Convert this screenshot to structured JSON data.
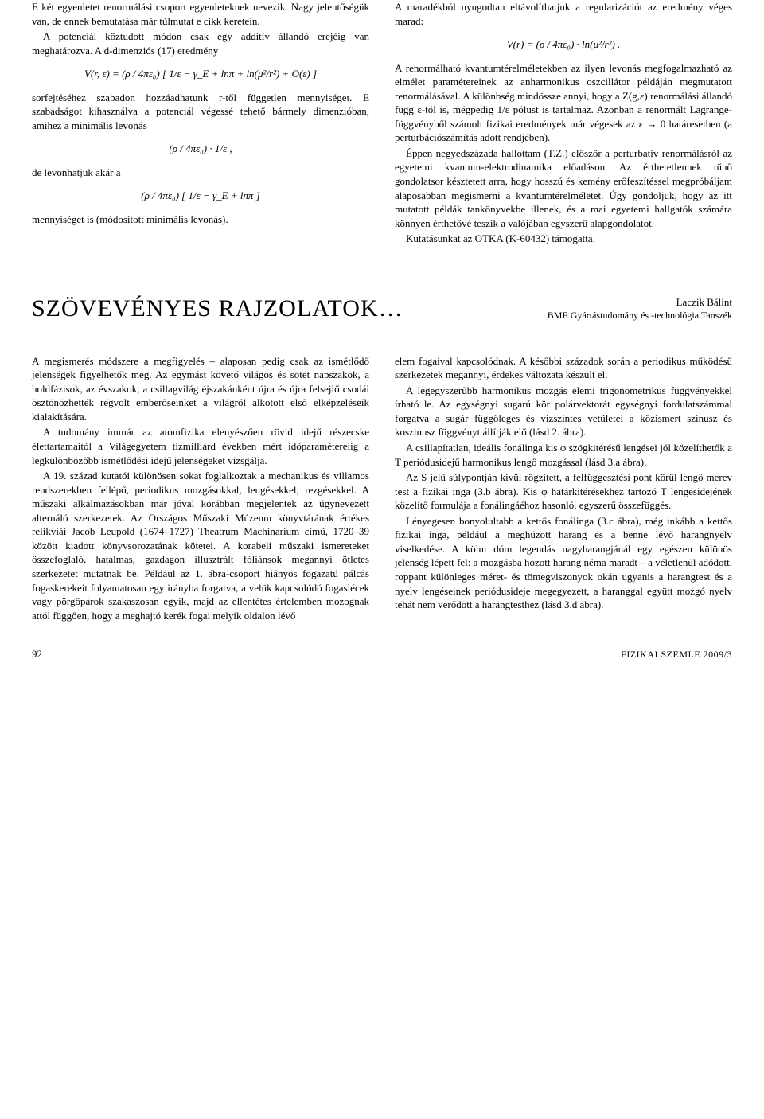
{
  "upper": {
    "left": {
      "p1": "E két egyenletet renormálási csoport egyenleteknek nevezik. Nagy jelentőségük van, de ennek bemutatása már túlmutat e cikk keretein.",
      "p2": "A potenciál köztudott módon csak egy additív állandó erejéig van meghatározva. A d-dimenziós (17) eredmény",
      "formula1": "V(r, ε) = (ρ / 4πε₀) [ 1/ε − γ_E + lnπ + ln(μ²/r²) + O(ε) ]",
      "p3": "sorfejtéséhez szabadon hozzáadhatunk r-től független mennyiséget. E szabadságot kihasználva a potenciál végessé tehető bármely dimenzióban, amihez a minimális levonás",
      "formula2": "(ρ / 4πε₀) · 1/ε ,",
      "p4": "de levonhatjuk akár a",
      "formula3": "(ρ / 4πε₀) [ 1/ε − γ_E + lnπ ]",
      "p5": "mennyiséget is (módosított minimális levonás)."
    },
    "right": {
      "p1": "A maradékból nyugodtan eltávolíthatjuk a regularizációt az eredmény véges marad:",
      "formula1": "V(r) = (ρ / 4πε₀) · ln(μ²/r²) .",
      "p2": "A renormálható kvantumtérelméletekben az ilyen levonás megfogalmazható az elmélet paramétereinek az anharmonikus oszcillátor példáján megmutatott renormálásával. A különbség mindössze annyi, hogy a Z(g,ε) renormálási állandó függ ε-tól is, mégpedig 1/ε pólust is tartalmaz. Azonban a renormált Lagrange-függvényből számolt fizikai eredmények már végesek az ε → 0 határesetben (a perturbációszámítás adott rendjében).",
      "p3": "Éppen negyedszázada hallottam (T.Z.) először a perturbatív renormálásról az egyetemi kvantum-elektrodinamika előadáson. Az érthetetlennek tűnő gondolatsor késztetett arra, hogy hosszú és kemény erőfeszítéssel megpróbáljam alaposabban megismerni a kvantumtérelméletet. Úgy gondoljuk, hogy az itt mutatott példák tankönyvekbe illenek, és a mai egyetemi hallgatók számára könnyen érthetővé teszik a valójában egyszerű alapgondolatot.",
      "p4": "Kutatásunkat az OTKA (K-60432) támogatta."
    }
  },
  "title": "SZÖVEVÉNYES RAJZOLATOK…",
  "byline": {
    "name": "Laczik Bálint",
    "affiliation": "BME Gyártástudomány és -technológia Tanszék"
  },
  "lower": {
    "left": {
      "p1": "A megismerés módszere a megfigyelés – alaposan pedig csak az ismétlődő jelenségek figyelhetők meg. Az egymást követő világos és sötét napszakok, a holdfázisok, az évszakok, a csillagvilág éjszakánként újra és újra felsejlő csodái ösztönözhették régvolt emberőseinket a világról alkotott első elképzeléseik kialakítására.",
      "p2": "A tudomány immár az atomfizika elenyészően rövid idejű részecske élettartamaitól a Világegyetem tízmilliárd években mért időparamétereiig a legkülönbözőbb ismétlődési idejű jelenségeket vizsgálja.",
      "p3": "A 19. század kutatói különösen sokat foglalkoztak a mechanikus és villamos rendszerekben fellépő, periodikus mozgásokkal, lengésekkel, rezgésekkel. A műszaki alkalmazásokban már jóval korábban megjelentek az úgynevezett alternáló szerkezetek. Az Országos Műszaki Múzeum könyvtárának értékes relikviái Jacob Leupold (1674–1727) Theatrum Machinarium című, 1720–39 között kiadott könyvsorozatának kötetei. A korabeli műszaki ismereteket összefoglaló, hatalmas, gazdagon illusztrált fóliánsok megannyi ötletes szerkezetet mutatnak be. Például az 1. ábra-csoport hiányos fogazatú pálcás fogaskerekeit folyamatosan egy irányba forgatva, a velük kapcsolódó fogaslécek vagy pörgőpárok szakaszosan egyik, majd az ellentétes értelemben mozognak attól függően, hogy a meghajtó kerék fogai melyik oldalon lévő"
    },
    "right": {
      "p1": "elem fogaival kapcsolódnak. A későbbi századok során a periodikus működésű szerkezetek megannyi, érdekes változata készült el.",
      "p2": "A legegyszerűbb harmonikus mozgás elemi trigonometrikus függvényekkel írható le. Az egységnyi sugarú kör polárvektorát egységnyi fordulatszámmal forgatva a sugár függőleges és vízszintes vetületei a közismert szinusz és koszinusz függvényt állítják elő (lásd 2. ábra).",
      "p3": "A csillapítatlan, ideális fonálinga kis φ szögkitérésű lengései jól közelíthetők a T periódusidejű harmonikus lengő mozgással (lásd 3.a ábra).",
      "p4": "Az S jelű súlypontján kívül rögzített, a felfüggesztési pont körül lengő merev test a fizikai inga (3.b ábra). Kis φ határkitérésekhez tartozó T lengésidejének közelítő formulája a fonálingáéhoz hasonló, egyszerű összefüggés.",
      "p5": "Lényegesen bonyolultabb a kettős fonálinga (3.c ábra), még inkább a kettős fizikai inga, például a meghúzott harang és a benne lévő harangnyelv viselkedése. A kölni dóm legendás nagyharangjánál egy egészen különös jelenség lépett fel: a mozgásba hozott harang néma maradt – a véletlenül adódott, roppant különleges méret- és tömegviszonyok okán ugyanis a harangtest és a nyelv lengéseinek periódusideje megegyezett, a haranggal együtt mozgó nyelv tehát nem verődött a harangtesthez (lásd 3.d ábra)."
    }
  },
  "footer": {
    "page": "92",
    "journal": "FIZIKAI SZEMLE 2009/3"
  }
}
